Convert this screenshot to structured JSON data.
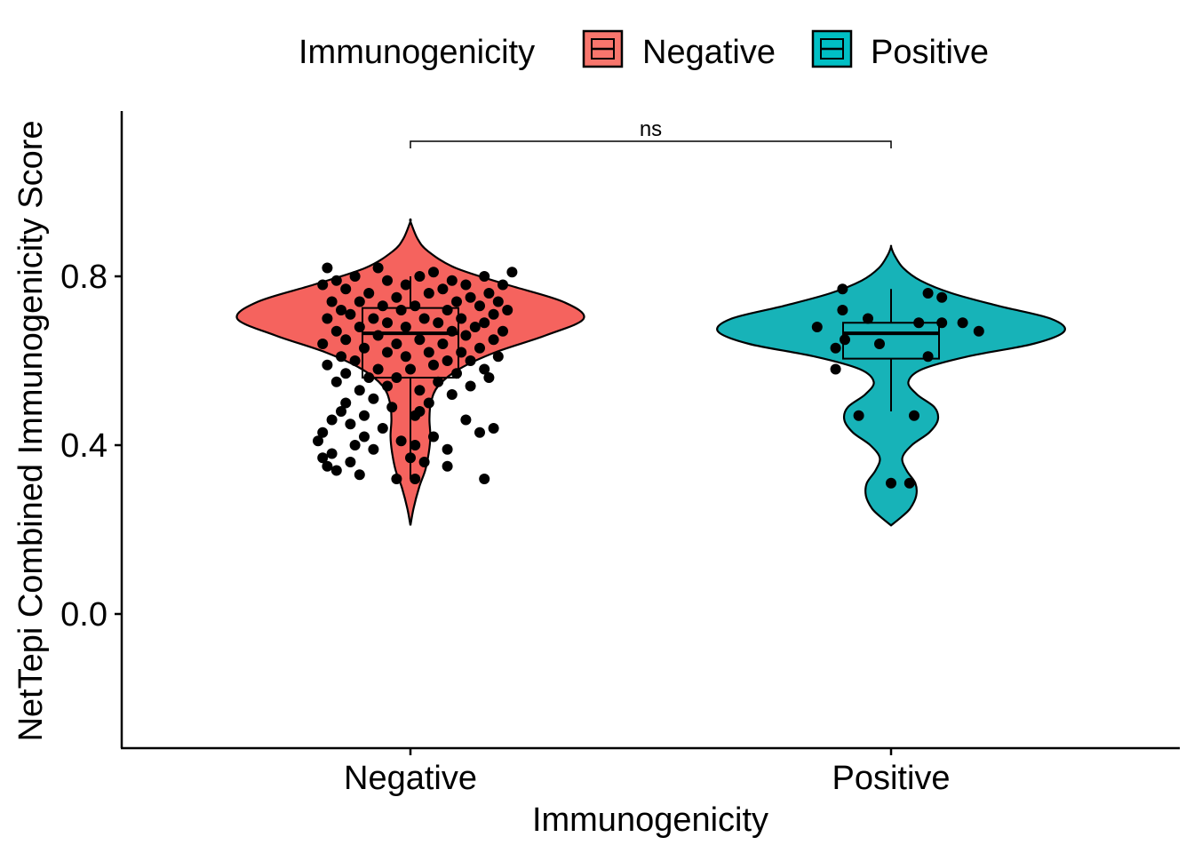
{
  "chart_data": {
    "type": "violin",
    "xlabel": "Immunogenicity",
    "ylabel": "NetTepi Combined Immunogenicity Score",
    "ylim": [
      -0.32,
      1.18
    ],
    "yticks": [
      {
        "value": 0.0,
        "label": "0.0"
      },
      {
        "value": 0.4,
        "label": "0.4"
      },
      {
        "value": 0.8,
        "label": "0.8"
      }
    ],
    "grid": false,
    "legend": {
      "title": "Immunogenicity",
      "position": "top",
      "entries": [
        {
          "label": "Negative",
          "color": "#F8766D"
        },
        {
          "label": "Positive",
          "color": "#00BFC4"
        }
      ]
    },
    "significance": {
      "label": "ns",
      "between": [
        "Negative",
        "Positive"
      ],
      "y": 1.12
    },
    "groups": [
      {
        "name": "Negative",
        "color": "#F5635E",
        "violin": {
          "ymin": 0.21,
          "ymax": 0.93,
          "density": [
            [
              0.21,
              0.0
            ],
            [
              0.25,
              0.018
            ],
            [
              0.3,
              0.05
            ],
            [
              0.34,
              0.085
            ],
            [
              0.38,
              0.105
            ],
            [
              0.42,
              0.115
            ],
            [
              0.46,
              0.11
            ],
            [
              0.5,
              0.118
            ],
            [
              0.54,
              0.16
            ],
            [
              0.58,
              0.28
            ],
            [
              0.62,
              0.49
            ],
            [
              0.66,
              0.78
            ],
            [
              0.7,
              1.0
            ],
            [
              0.74,
              0.88
            ],
            [
              0.78,
              0.56
            ],
            [
              0.82,
              0.26
            ],
            [
              0.86,
              0.1
            ],
            [
              0.89,
              0.04
            ],
            [
              0.93,
              0.0
            ]
          ]
        },
        "box": {
          "min": 0.32,
          "q1": 0.56,
          "median": 0.665,
          "q3": 0.725,
          "max": 0.8
        },
        "points": [
          [
            -0.18,
            0.82
          ],
          [
            -0.07,
            0.82
          ],
          [
            0.05,
            0.81
          ],
          [
            0.22,
            0.81
          ],
          [
            -0.12,
            0.8
          ],
          [
            0.16,
            0.8
          ],
          [
            -0.16,
            0.79
          ],
          [
            0.02,
            0.8
          ],
          [
            0.09,
            0.79
          ],
          [
            -0.05,
            0.79
          ],
          [
            0.12,
            0.78
          ],
          [
            -0.19,
            0.78
          ],
          [
            0.2,
            0.78
          ],
          [
            -0.01,
            0.78
          ],
          [
            0.07,
            0.77
          ],
          [
            -0.14,
            0.77
          ],
          [
            0.17,
            0.76
          ],
          [
            -0.09,
            0.76
          ],
          [
            0.13,
            0.75
          ],
          [
            -0.03,
            0.75
          ],
          [
            0.04,
            0.76
          ],
          [
            -0.17,
            0.74
          ],
          [
            0.19,
            0.74
          ],
          [
            -0.11,
            0.74
          ],
          [
            0.1,
            0.74
          ],
          [
            -0.06,
            0.73
          ],
          [
            0.15,
            0.73
          ],
          [
            0.01,
            0.73
          ],
          [
            -0.15,
            0.72
          ],
          [
            0.21,
            0.72
          ],
          [
            -0.02,
            0.72
          ],
          [
            0.08,
            0.72
          ],
          [
            -0.13,
            0.71
          ],
          [
            0.18,
            0.71
          ],
          [
            -0.08,
            0.7
          ],
          [
            0.11,
            0.7
          ],
          [
            0.03,
            0.7
          ],
          [
            -0.18,
            0.7
          ],
          [
            0.16,
            0.69
          ],
          [
            -0.05,
            0.69
          ],
          [
            0.06,
            0.69
          ],
          [
            -0.11,
            0.68
          ],
          [
            0.14,
            0.68
          ],
          [
            -0.01,
            0.68
          ],
          [
            0.2,
            0.67
          ],
          [
            -0.16,
            0.67
          ],
          [
            0.09,
            0.67
          ],
          [
            -0.07,
            0.66
          ],
          [
            0.12,
            0.66
          ],
          [
            -0.14,
            0.65
          ],
          [
            0.02,
            0.65
          ],
          [
            0.18,
            0.65
          ],
          [
            -0.03,
            0.64
          ],
          [
            0.07,
            0.64
          ],
          [
            -0.19,
            0.64
          ],
          [
            0.15,
            0.63
          ],
          [
            -0.1,
            0.63
          ],
          [
            0.04,
            0.62
          ],
          [
            -0.05,
            0.62
          ],
          [
            0.11,
            0.62
          ],
          [
            -0.15,
            0.61
          ],
          [
            0.19,
            0.61
          ],
          [
            -0.01,
            0.61
          ],
          [
            0.08,
            0.6
          ],
          [
            -0.12,
            0.6
          ],
          [
            0.13,
            0.6
          ],
          [
            -0.18,
            0.59
          ],
          [
            0.05,
            0.59
          ],
          [
            -0.07,
            0.58
          ],
          [
            0.16,
            0.58
          ],
          [
            0.0,
            0.58
          ],
          [
            -0.14,
            0.57
          ],
          [
            0.1,
            0.57
          ],
          [
            -0.03,
            0.56
          ],
          [
            0.17,
            0.56
          ],
          [
            -0.09,
            0.56
          ],
          [
            0.06,
            0.55
          ],
          [
            -0.16,
            0.55
          ],
          [
            0.13,
            0.54
          ],
          [
            -0.05,
            0.54
          ],
          [
            0.02,
            0.53
          ],
          [
            -0.11,
            0.53
          ],
          [
            0.09,
            0.52
          ],
          [
            -0.08,
            0.51
          ],
          [
            0.04,
            0.5
          ],
          [
            -0.14,
            0.5
          ],
          [
            -0.04,
            0.49
          ],
          [
            0.02,
            0.48
          ],
          [
            -0.15,
            0.48
          ],
          [
            -0.1,
            0.47
          ],
          [
            0.01,
            0.47
          ],
          [
            0.12,
            0.46
          ],
          [
            -0.17,
            0.46
          ],
          [
            -0.13,
            0.45
          ],
          [
            0.18,
            0.44
          ],
          [
            -0.06,
            0.44
          ],
          [
            0.15,
            0.43
          ],
          [
            -0.19,
            0.43
          ],
          [
            -0.1,
            0.42
          ],
          [
            0.05,
            0.42
          ],
          [
            -0.02,
            0.41
          ],
          [
            0.01,
            0.4
          ],
          [
            -0.2,
            0.41
          ],
          [
            -0.12,
            0.4
          ],
          [
            0.08,
            0.39
          ],
          [
            -0.17,
            0.38
          ],
          [
            -0.08,
            0.39
          ],
          [
            0.0,
            0.37
          ],
          [
            -0.19,
            0.37
          ],
          [
            -0.13,
            0.36
          ],
          [
            0.03,
            0.36
          ],
          [
            -0.18,
            0.35
          ],
          [
            0.08,
            0.35
          ],
          [
            -0.16,
            0.34
          ],
          [
            -0.03,
            0.32
          ],
          [
            0.01,
            0.32
          ],
          [
            0.16,
            0.32
          ],
          [
            -0.11,
            0.33
          ]
        ]
      },
      {
        "name": "Positive",
        "color": "#17B3B8",
        "violin": {
          "ymin": 0.21,
          "ymax": 0.87,
          "density": [
            [
              0.21,
              0.0
            ],
            [
              0.23,
              0.06
            ],
            [
              0.25,
              0.11
            ],
            [
              0.28,
              0.145
            ],
            [
              0.31,
              0.14
            ],
            [
              0.34,
              0.09
            ],
            [
              0.37,
              0.065
            ],
            [
              0.4,
              0.12
            ],
            [
              0.43,
              0.22
            ],
            [
              0.46,
              0.27
            ],
            [
              0.49,
              0.25
            ],
            [
              0.52,
              0.15
            ],
            [
              0.55,
              0.1
            ],
            [
              0.58,
              0.18
            ],
            [
              0.61,
              0.44
            ],
            [
              0.64,
              0.82
            ],
            [
              0.67,
              1.0
            ],
            [
              0.7,
              0.92
            ],
            [
              0.73,
              0.62
            ],
            [
              0.76,
              0.35
            ],
            [
              0.79,
              0.17
            ],
            [
              0.82,
              0.07
            ],
            [
              0.85,
              0.02
            ],
            [
              0.87,
              0.0
            ]
          ]
        },
        "box": {
          "min": 0.48,
          "q1": 0.605,
          "median": 0.665,
          "q3": 0.69,
          "max": 0.77
        },
        "points": [
          [
            -0.105,
            0.77
          ],
          [
            0.08,
            0.76
          ],
          [
            0.11,
            0.75
          ],
          [
            -0.105,
            0.72
          ],
          [
            -0.16,
            0.68
          ],
          [
            -0.05,
            0.7
          ],
          [
            0.06,
            0.69
          ],
          [
            0.11,
            0.69
          ],
          [
            0.155,
            0.69
          ],
          [
            0.19,
            0.67
          ],
          [
            -0.12,
            0.63
          ],
          [
            -0.1,
            0.65
          ],
          [
            -0.025,
            0.64
          ],
          [
            0.08,
            0.61
          ],
          [
            -0.12,
            0.58
          ],
          [
            -0.07,
            0.47
          ],
          [
            0.05,
            0.47
          ],
          [
            0.0,
            0.31
          ],
          [
            0.04,
            0.31
          ]
        ]
      }
    ]
  }
}
